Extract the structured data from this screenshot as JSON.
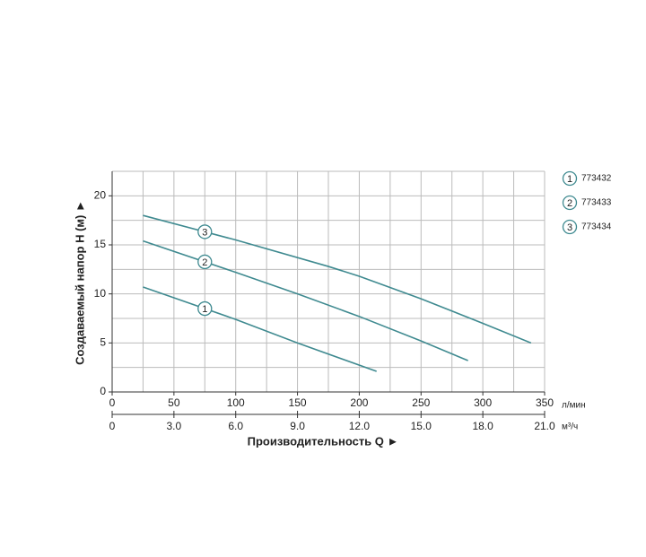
{
  "chart_data": {
    "type": "line",
    "ylabel": "Создаваемый напор H (м) ►",
    "xlabel": "Производительность Q ►",
    "x_unit": "л/мин",
    "x2_unit": "м³/ч",
    "xlim": [
      0,
      350
    ],
    "xticks": [
      0,
      50,
      100,
      150,
      200,
      250,
      300,
      350
    ],
    "x2lim": [
      0,
      21
    ],
    "x2ticks": [
      0,
      {
        "value": 3,
        "label": "3.0"
      },
      {
        "value": 6,
        "label": "6.0"
      },
      {
        "value": 9,
        "label": "9.0"
      },
      {
        "value": 12,
        "label": "12.0"
      },
      {
        "value": 15,
        "label": "15.0"
      },
      {
        "value": 18,
        "label": "18.0"
      },
      {
        "value": 21,
        "label": "21.0"
      }
    ],
    "ylim": [
      0,
      22.5
    ],
    "yticks": [
      0,
      5,
      10,
      15,
      20
    ],
    "xgrid": [
      0,
      25,
      50,
      75,
      100,
      125,
      150,
      175,
      200,
      225,
      250,
      275,
      300,
      325,
      350
    ],
    "ygrid": [
      0,
      2.5,
      5,
      7.5,
      10,
      12.5,
      15,
      17.5,
      20,
      22.5
    ],
    "grid": true,
    "series": [
      {
        "name": "773432",
        "label": "1",
        "color": "#3f8a90",
        "x": [
          25,
          50,
          100,
          150,
          214
        ],
        "values": [
          10.7,
          9.6,
          7.4,
          5.0,
          2.1
        ]
      },
      {
        "name": "773433",
        "label": "2",
        "color": "#3f8a90",
        "x": [
          25,
          100,
          150,
          200,
          250,
          288
        ],
        "values": [
          15.4,
          12.2,
          10.0,
          7.7,
          5.2,
          3.2
        ]
      },
      {
        "name": "773434",
        "label": "3",
        "color": "#3f8a90",
        "x": [
          25,
          100,
          175,
          200,
          250,
          300,
          339
        ],
        "values": [
          18.0,
          15.5,
          12.8,
          11.8,
          9.5,
          7.0,
          5.0
        ]
      }
    ]
  }
}
